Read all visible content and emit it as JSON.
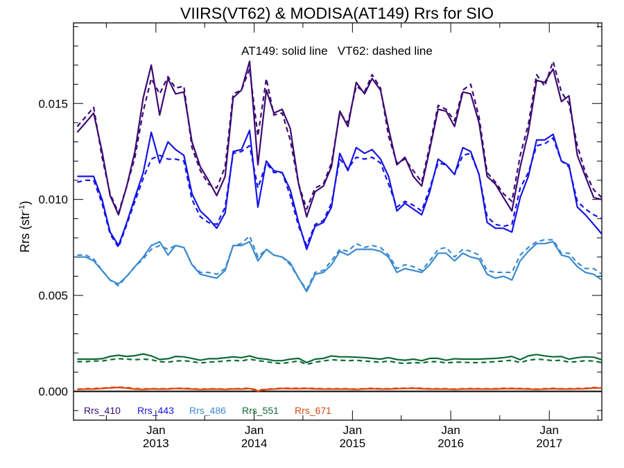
{
  "chart_data": {
    "type": "line",
    "title": "VIIRS(VT62) & MODISA(AT149)  Rrs for SIO",
    "annotation": "AT149: solid line   VT62: dashed line",
    "ylabel": {
      "base": "Rrs (str",
      "sup": "-1",
      "end": ")"
    },
    "xlabel": "",
    "x_axis": {
      "type": "date",
      "range": [
        "2012-03-01",
        "2017-07-15"
      ],
      "ticks": [
        {
          "date": "2013-01-01",
          "month": "Jan",
          "year": "2013"
        },
        {
          "date": "2014-01-01",
          "month": "Jan",
          "year": "2014"
        },
        {
          "date": "2015-01-01",
          "month": "Jan",
          "year": "2015"
        },
        {
          "date": "2016-01-01",
          "month": "Jan",
          "year": "2016"
        },
        {
          "date": "2017-01-01",
          "month": "Jan",
          "year": "2017"
        }
      ]
    },
    "y_axis": {
      "range": [
        -0.0015,
        0.0192
      ],
      "ticks": [
        "0.000",
        "0.005",
        "0.010",
        "0.015"
      ],
      "tick_values": [
        0.0,
        0.005,
        0.01,
        0.015
      ]
    },
    "zero_line": true,
    "grid": false,
    "legend": {
      "position": "bottom-left"
    },
    "x": [
      "2012-03",
      "2012-04",
      "2012-05",
      "2012-06",
      "2012-07",
      "2012-08",
      "2012-09",
      "2012-10",
      "2012-11",
      "2012-12",
      "2013-01",
      "2013-02",
      "2013-03",
      "2013-04",
      "2013-05",
      "2013-06",
      "2013-07",
      "2013-08",
      "2013-09",
      "2013-10",
      "2013-11",
      "2013-12",
      "2014-01",
      "2014-02",
      "2014-03",
      "2014-04",
      "2014-05",
      "2014-06",
      "2014-07",
      "2014-08",
      "2014-09",
      "2014-10",
      "2014-11",
      "2014-12",
      "2015-01",
      "2015-02",
      "2015-03",
      "2015-04",
      "2015-05",
      "2015-06",
      "2015-07",
      "2015-08",
      "2015-09",
      "2015-10",
      "2015-11",
      "2015-12",
      "2016-01",
      "2016-02",
      "2016-03",
      "2016-04",
      "2016-05",
      "2016-06",
      "2016-07",
      "2016-08",
      "2016-09",
      "2016-10",
      "2016-11",
      "2016-12",
      "2017-01",
      "2017-02",
      "2017-03",
      "2017-04",
      "2017-05",
      "2017-06",
      "2017-07"
    ],
    "series": [
      {
        "name": "Rrs_410",
        "color": "#3b0a73",
        "product": "AT149",
        "dash": false,
        "values": [
          0.0135,
          0.014,
          0.0145,
          0.0125,
          0.0102,
          0.0092,
          0.0107,
          0.0125,
          0.0153,
          0.017,
          0.0144,
          0.0163,
          0.0155,
          0.0156,
          0.013,
          0.0117,
          0.011,
          0.0102,
          0.0112,
          0.0153,
          0.0157,
          0.0172,
          0.0118,
          0.0157,
          0.0145,
          0.0147,
          0.0137,
          0.0108,
          0.0091,
          0.0104,
          0.0107,
          0.0117,
          0.0146,
          0.0138,
          0.0161,
          0.0155,
          0.0163,
          0.0157,
          0.0137,
          0.0118,
          0.0122,
          0.0112,
          0.0107,
          0.0126,
          0.0147,
          0.0146,
          0.0138,
          0.0156,
          0.0155,
          0.014,
          0.0112,
          0.0108,
          0.0101,
          0.0094,
          0.0117,
          0.0135,
          0.0162,
          0.0161,
          0.0168,
          0.0151,
          0.0154,
          0.0123,
          0.0112,
          0.0101,
          0.01
        ]
      },
      {
        "name": "Rrs_410",
        "color": "#3b0a73",
        "product": "VT62",
        "dash": true,
        "values": [
          0.0138,
          0.0143,
          0.0148,
          0.0122,
          0.0103,
          0.0093,
          0.0107,
          0.0122,
          0.0146,
          0.0163,
          0.0155,
          0.0164,
          0.0158,
          0.0159,
          0.0127,
          0.0115,
          0.0108,
          0.0106,
          0.0117,
          0.0155,
          0.0157,
          0.0168,
          0.0133,
          0.0163,
          0.0144,
          0.0145,
          0.0131,
          0.0108,
          0.0095,
          0.0106,
          0.0108,
          0.0119,
          0.0145,
          0.014,
          0.0159,
          0.0156,
          0.0165,
          0.0158,
          0.0133,
          0.0119,
          0.0121,
          0.0115,
          0.0109,
          0.0128,
          0.0149,
          0.0147,
          0.0141,
          0.0157,
          0.016,
          0.0143,
          0.0114,
          0.0109,
          0.0103,
          0.0099,
          0.0123,
          0.0139,
          0.0165,
          0.0159,
          0.0172,
          0.0156,
          0.015,
          0.0128,
          0.0114,
          0.0105,
          0.0101
        ]
      },
      {
        "name": "Rrs_443",
        "color": "#1414e6",
        "product": "AT149",
        "dash": false,
        "values": [
          0.0112,
          0.0112,
          0.0112,
          0.01,
          0.0083,
          0.0076,
          0.0088,
          0.0101,
          0.0114,
          0.0135,
          0.0119,
          0.013,
          0.0126,
          0.0123,
          0.0103,
          0.0094,
          0.009,
          0.0085,
          0.0093,
          0.0125,
          0.0126,
          0.0136,
          0.0096,
          0.012,
          0.0115,
          0.0114,
          0.0105,
          0.0088,
          0.0074,
          0.0086,
          0.0088,
          0.0096,
          0.0124,
          0.0115,
          0.0127,
          0.0124,
          0.0126,
          0.0121,
          0.0112,
          0.0094,
          0.0098,
          0.0095,
          0.0092,
          0.0104,
          0.0121,
          0.0118,
          0.0113,
          0.0127,
          0.0125,
          0.0113,
          0.0088,
          0.0085,
          0.0085,
          0.0083,
          0.0101,
          0.0112,
          0.0131,
          0.0131,
          0.0134,
          0.012,
          0.0118,
          0.0096,
          0.0092,
          0.0087,
          0.0082
        ]
      },
      {
        "name": "Rrs_443",
        "color": "#1414e6",
        "product": "VT62",
        "dash": true,
        "values": [
          0.0109,
          0.011,
          0.011,
          0.0098,
          0.0082,
          0.0075,
          0.0087,
          0.0099,
          0.0111,
          0.0121,
          0.0123,
          0.0121,
          0.0121,
          0.012,
          0.01,
          0.0091,
          0.0088,
          0.0087,
          0.0096,
          0.0124,
          0.0125,
          0.0128,
          0.0106,
          0.0119,
          0.0114,
          0.0114,
          0.0102,
          0.0086,
          0.0076,
          0.0087,
          0.0089,
          0.0098,
          0.0121,
          0.0116,
          0.0122,
          0.0121,
          0.0122,
          0.0119,
          0.0108,
          0.0096,
          0.0099,
          0.0097,
          0.0094,
          0.0106,
          0.0119,
          0.0118,
          0.0113,
          0.0123,
          0.0124,
          0.0113,
          0.0091,
          0.0087,
          0.0086,
          0.0087,
          0.0106,
          0.0114,
          0.0128,
          0.0129,
          0.0132,
          0.012,
          0.0117,
          0.0099,
          0.0095,
          0.0092,
          0.009
        ]
      },
      {
        "name": "Rrs_486",
        "color": "#3a8ad0",
        "product": "AT149",
        "dash": false,
        "values": [
          0.007,
          0.007,
          0.0068,
          0.0063,
          0.0058,
          0.0056,
          0.006,
          0.0065,
          0.007,
          0.0076,
          0.0078,
          0.0071,
          0.0076,
          0.0075,
          0.0066,
          0.0061,
          0.006,
          0.0059,
          0.0063,
          0.0076,
          0.0076,
          0.0078,
          0.0068,
          0.0074,
          0.0071,
          0.007,
          0.0067,
          0.0059,
          0.0052,
          0.0061,
          0.0062,
          0.0066,
          0.0073,
          0.0071,
          0.0074,
          0.0074,
          0.0074,
          0.0073,
          0.007,
          0.0062,
          0.0064,
          0.0063,
          0.0062,
          0.0066,
          0.0072,
          0.0072,
          0.0068,
          0.0072,
          0.007,
          0.0069,
          0.0061,
          0.0059,
          0.006,
          0.0058,
          0.0068,
          0.0073,
          0.0077,
          0.0077,
          0.0078,
          0.0071,
          0.007,
          0.0065,
          0.0062,
          0.0061,
          0.0058
        ]
      },
      {
        "name": "Rrs_486",
        "color": "#3a8ad0",
        "product": "VT62",
        "dash": true,
        "values": [
          0.0071,
          0.0071,
          0.0069,
          0.0063,
          0.0058,
          0.0055,
          0.006,
          0.0065,
          0.0069,
          0.0074,
          0.0076,
          0.0074,
          0.0076,
          0.0075,
          0.0066,
          0.0062,
          0.0062,
          0.0061,
          0.0064,
          0.0076,
          0.0077,
          0.0081,
          0.007,
          0.0074,
          0.0071,
          0.007,
          0.0066,
          0.0059,
          0.0053,
          0.0062,
          0.0063,
          0.0068,
          0.0074,
          0.0073,
          0.0077,
          0.0075,
          0.0076,
          0.0075,
          0.0071,
          0.0064,
          0.0066,
          0.0065,
          0.0063,
          0.0068,
          0.0074,
          0.0075,
          0.007,
          0.0074,
          0.0073,
          0.0071,
          0.0063,
          0.0062,
          0.0062,
          0.0062,
          0.0071,
          0.0075,
          0.0078,
          0.0079,
          0.0079,
          0.0072,
          0.0072,
          0.0067,
          0.0064,
          0.0064,
          0.0061
        ]
      },
      {
        "name": "Rrs_551",
        "color": "#0b6a34",
        "product": "AT149",
        "dash": false,
        "values": [
          0.00168,
          0.00168,
          0.00168,
          0.0017,
          0.00182,
          0.00188,
          0.00182,
          0.00186,
          0.00195,
          0.00185,
          0.00166,
          0.0017,
          0.00182,
          0.0018,
          0.00172,
          0.00162,
          0.0017,
          0.0017,
          0.00175,
          0.0018,
          0.00176,
          0.00185,
          0.00172,
          0.00168,
          0.0016,
          0.0016,
          0.00168,
          0.00172,
          0.0015,
          0.00168,
          0.00172,
          0.00185,
          0.0018,
          0.0018,
          0.00178,
          0.00176,
          0.00172,
          0.00168,
          0.00176,
          0.00166,
          0.00162,
          0.00168,
          0.0016,
          0.00172,
          0.00172,
          0.00162,
          0.0017,
          0.00168,
          0.00168,
          0.00168,
          0.0017,
          0.00172,
          0.00176,
          0.00182,
          0.00165,
          0.00185,
          0.00192,
          0.00185,
          0.0018,
          0.00182,
          0.00168,
          0.00176,
          0.0018,
          0.00178,
          0.00165
        ]
      },
      {
        "name": "Rrs_551",
        "color": "#0b6a34",
        "product": "VT62",
        "dash": true,
        "values": [
          0.00155,
          0.00155,
          0.00158,
          0.00158,
          0.00165,
          0.0017,
          0.00168,
          0.00165,
          0.00168,
          0.00165,
          0.00155,
          0.00152,
          0.00158,
          0.0016,
          0.00155,
          0.00148,
          0.00152,
          0.00155,
          0.00158,
          0.00162,
          0.00158,
          0.00168,
          0.0016,
          0.00155,
          0.00148,
          0.00145,
          0.00152,
          0.00158,
          0.0014,
          0.00152,
          0.00158,
          0.00165,
          0.00162,
          0.0016,
          0.00162,
          0.00158,
          0.00155,
          0.00152,
          0.00158,
          0.0015,
          0.00145,
          0.0015,
          0.00148,
          0.00155,
          0.00155,
          0.00148,
          0.00152,
          0.00152,
          0.0015,
          0.0015,
          0.00152,
          0.00155,
          0.00158,
          0.00162,
          0.0015,
          0.00162,
          0.00168,
          0.00165,
          0.0016,
          0.00162,
          0.00152,
          0.00155,
          0.0016,
          0.00158,
          0.0015
        ]
      },
      {
        "name": "Rrs_671",
        "color": "#d9480f",
        "product": "AT149",
        "dash": false,
        "values": [
          0.0001,
          0.00012,
          0.00012,
          0.00015,
          0.00018,
          0.0002,
          0.00017,
          0.00012,
          0.0001,
          0.00013,
          0.00012,
          0.00012,
          0.00015,
          0.00014,
          0.00012,
          0.0001,
          0.00011,
          0.00012,
          0.0001,
          0.00013,
          0.00012,
          0.00015,
          2e-05,
          0.0001,
          0.00012,
          0.00015,
          0.00014,
          0.00014,
          0.00015,
          0.00013,
          0.00012,
          0.00012,
          0.00012,
          0.00012,
          0.0001,
          0.00013,
          0.00014,
          0.00012,
          0.00012,
          0.00014,
          0.00015,
          0.00016,
          0.00014,
          0.00012,
          0.00012,
          0.00012,
          0.0001,
          0.00012,
          0.00013,
          0.00012,
          0.00012,
          0.00012,
          0.00014,
          0.00014,
          0.00013,
          0.00012,
          0.0001,
          0.00012,
          0.00014,
          0.00012,
          0.00012,
          0.00013,
          0.00014,
          0.00018,
          0.00017
        ]
      },
      {
        "name": "Rrs_671",
        "color": "#d9480f",
        "product": "VT62",
        "dash": true,
        "values": [
          0.00012,
          0.00014,
          0.00015,
          0.00017,
          0.0002,
          0.00022,
          0.0002,
          0.00015,
          0.00013,
          0.00014,
          0.00014,
          0.00014,
          0.00016,
          0.00016,
          0.00014,
          0.00012,
          0.00013,
          0.00014,
          0.00012,
          0.00014,
          0.00014,
          0.00017,
          6e-05,
          0.00012,
          0.00014,
          0.00017,
          0.00016,
          0.00016,
          0.00017,
          0.00015,
          0.00014,
          0.00014,
          0.00014,
          0.00014,
          0.00012,
          0.00014,
          0.00016,
          0.00014,
          0.00014,
          0.00016,
          0.00017,
          0.00018,
          0.00016,
          0.00014,
          0.00014,
          0.00014,
          0.00012,
          0.00014,
          0.00015,
          0.00014,
          0.00014,
          0.00014,
          0.00016,
          0.00016,
          0.00015,
          0.00014,
          0.00012,
          0.00014,
          0.00016,
          0.00014,
          0.00014,
          0.00015,
          0.00016,
          0.0002,
          0.00019
        ]
      }
    ]
  }
}
